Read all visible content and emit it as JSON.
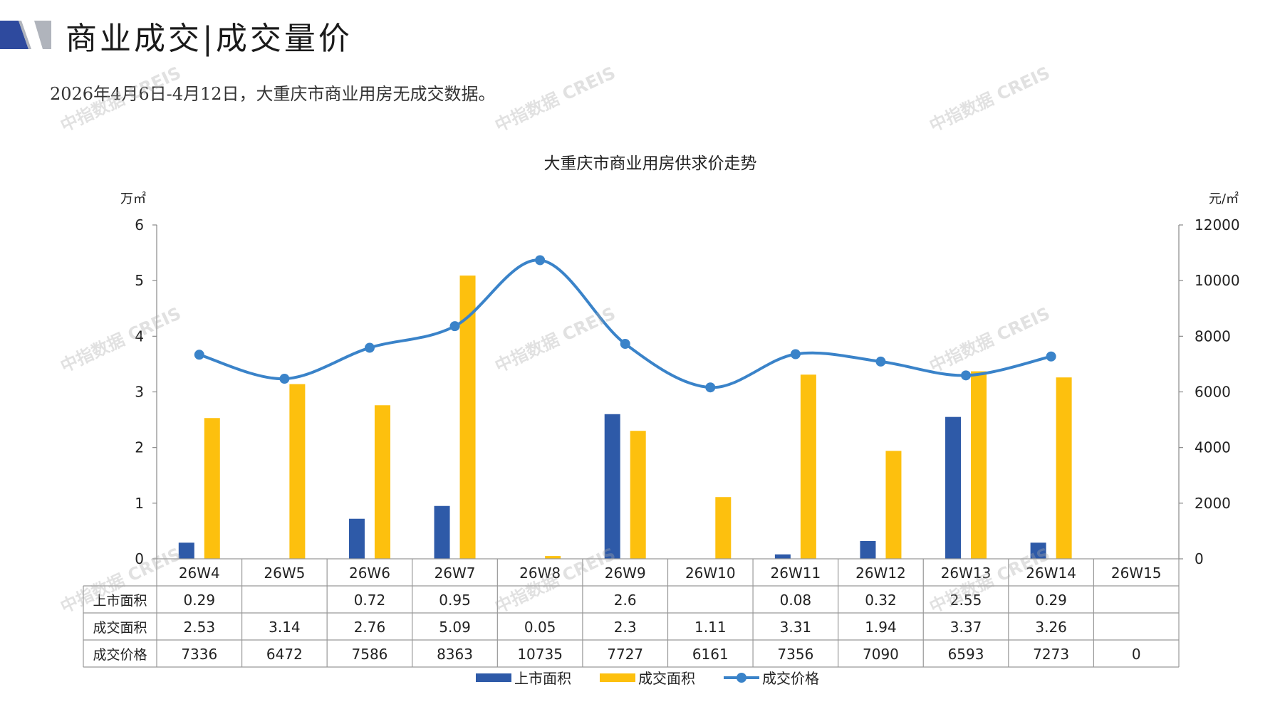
{
  "header": {
    "title": "商业成交|成交量价",
    "subtitle": "2026年4月6日-4月12日，大重庆市商业用房无成交数据。"
  },
  "watermark_text": "中指数据 CREIS",
  "colors": {
    "listed_bar": "#2e5aa8",
    "traded_bar": "#fdc00e",
    "price_line": "#3a83c9",
    "header_block": "#2e4a9e",
    "header_gray": "#b0b4bc"
  },
  "chart_data": {
    "type": "bar",
    "title": "大重庆市商业用房供求价走势",
    "y_left_unit": "万㎡",
    "y_right_unit": "元/㎡",
    "ylim_left": [
      0,
      6
    ],
    "ylim_right": [
      0,
      12000
    ],
    "yticks_left": [
      "0",
      "1",
      "2",
      "3",
      "4",
      "5",
      "6"
    ],
    "yticks_right": [
      "0",
      "2000",
      "4000",
      "6000",
      "8000",
      "10000",
      "12000"
    ],
    "categories": [
      "26W4",
      "26W5",
      "26W6",
      "26W7",
      "26W8",
      "26W9",
      "26W10",
      "26W11",
      "26W12",
      "26W13",
      "26W14",
      "26W15"
    ],
    "series": [
      {
        "name": "上市面积",
        "type": "bar",
        "axis": "left",
        "values": [
          0.29,
          null,
          0.72,
          0.95,
          null,
          2.6,
          null,
          0.08,
          0.32,
          2.55,
          0.29,
          null
        ],
        "labels": [
          "0.29",
          "",
          "0.72",
          "0.95",
          "",
          "2.6",
          "",
          "0.08",
          "0.32",
          "2.55",
          "0.29",
          ""
        ]
      },
      {
        "name": "成交面积",
        "type": "bar",
        "axis": "left",
        "values": [
          2.53,
          3.14,
          2.76,
          5.09,
          0.05,
          2.3,
          1.11,
          3.31,
          1.94,
          3.37,
          3.26,
          null
        ],
        "labels": [
          "2.53",
          "3.14",
          "2.76",
          "5.09",
          "0.05",
          "2.3",
          "1.11",
          "3.31",
          "1.94",
          "3.37",
          "3.26",
          ""
        ]
      },
      {
        "name": "成交价格",
        "type": "line",
        "axis": "right",
        "values": [
          7336,
          6472,
          7586,
          8363,
          10735,
          7727,
          6161,
          7356,
          7090,
          6593,
          7273,
          0
        ],
        "labels": [
          "7336",
          "6472",
          "7586",
          "8363",
          "10735",
          "7727",
          "6161",
          "7356",
          "7090",
          "6593",
          "7273",
          "0"
        ]
      }
    ],
    "legend_position": "bottom",
    "grid": false,
    "data_table": true
  }
}
